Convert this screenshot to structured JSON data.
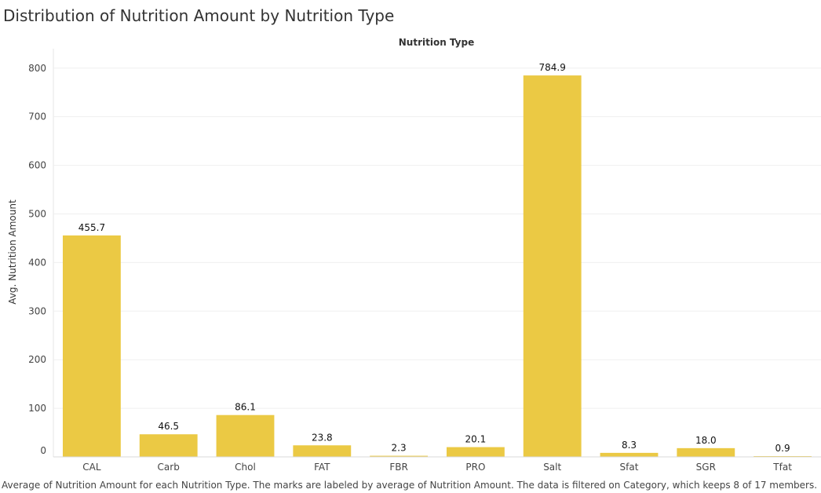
{
  "title": "Distribution of Nutrition Amount by Nutrition Type",
  "caption": "Average of Nutrition Amount for each Nutrition Type.  The marks are labeled by average of Nutrition Amount. The data is filtered on Category, which keeps 8 of 17 members.",
  "chart_data": {
    "type": "bar",
    "title": "",
    "column_header": "Nutrition Type",
    "xlabel": "",
    "ylabel": "Avg. Nutrition Amount",
    "categories": [
      "CAL",
      "Carb",
      "Chol",
      "FAT",
      "FBR",
      "PRO",
      "Salt",
      "Sfat",
      "SGR",
      "Tfat"
    ],
    "values": [
      455.7,
      46.5,
      86.1,
      23.8,
      2.3,
      20.1,
      784.9,
      8.3,
      18.0,
      0.9
    ],
    "labels": [
      "455.7",
      "46.5",
      "86.1",
      "23.8",
      "2.3",
      "20.1",
      "784.9",
      "8.3",
      "18.0",
      "0.9"
    ],
    "yticks": [
      0,
      100,
      200,
      300,
      400,
      500,
      600,
      700,
      800
    ],
    "ylim": [
      0,
      840
    ],
    "grid": true,
    "bar_color": "#EBC944"
  }
}
